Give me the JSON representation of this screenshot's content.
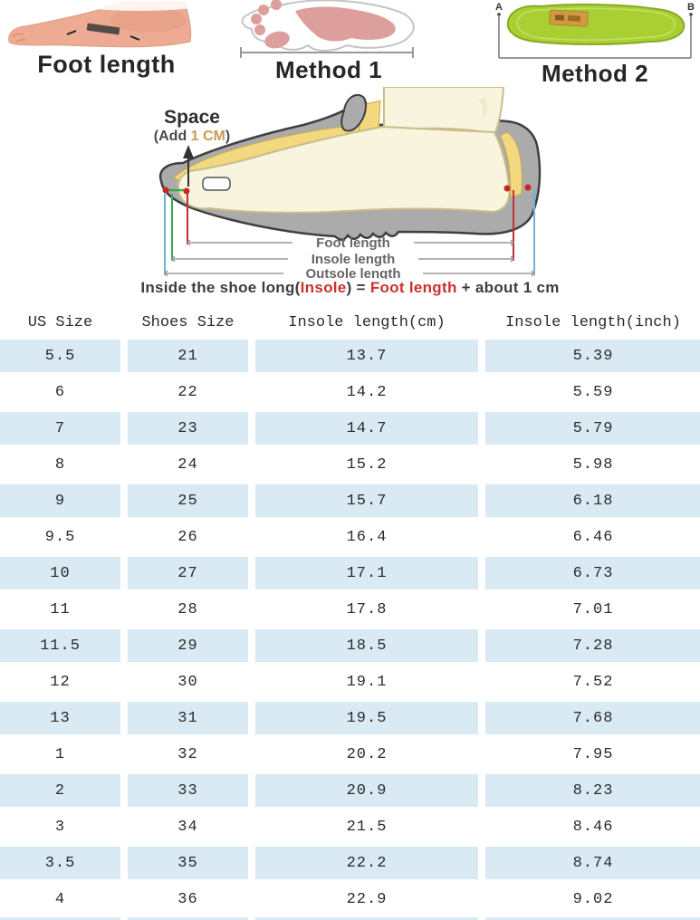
{
  "header_images": {
    "foot_photo_label": "Foot length",
    "method1_label": "Method 1",
    "method2_label": "Method 2",
    "method2_point_a": "A",
    "method2_point_b": "B"
  },
  "diagram": {
    "space_label": "Space",
    "space_note_prefix": "(Add ",
    "space_note_value": "1 CM",
    "space_note_suffix": ")",
    "measures": {
      "foot_length": "Foot length",
      "insole_length": "Insole length",
      "outsole_length": "Outsole length"
    }
  },
  "formula": {
    "part1": "Inside the shoe long(",
    "insole": "Insole",
    "part2": ") = ",
    "foot_length": "Foot length",
    "part3": " + about 1 cm"
  },
  "table": {
    "columns": [
      "US Size",
      "Shoes Size",
      "Insole length(cm)",
      "Insole length(inch)"
    ],
    "rows": [
      [
        "5.5",
        "21",
        "13.7",
        "5.39"
      ],
      [
        "6",
        "22",
        "14.2",
        "5.59"
      ],
      [
        "7",
        "23",
        "14.7",
        "5.79"
      ],
      [
        "8",
        "24",
        "15.2",
        "5.98"
      ],
      [
        "9",
        "25",
        "15.7",
        "6.18"
      ],
      [
        "9.5",
        "26",
        "16.4",
        "6.46"
      ],
      [
        "10",
        "27",
        "17.1",
        "6.73"
      ],
      [
        "11",
        "28",
        "17.8",
        "7.01"
      ],
      [
        "11.5",
        "29",
        "18.5",
        "7.28"
      ],
      [
        "12",
        "30",
        "19.1",
        "7.52"
      ],
      [
        "13",
        "31",
        "19.5",
        "7.68"
      ],
      [
        "1",
        "32",
        "20.2",
        "7.95"
      ],
      [
        "2",
        "33",
        "20.9",
        "8.23"
      ],
      [
        "3",
        "34",
        "21.5",
        "8.46"
      ],
      [
        "3.5",
        "35",
        "22.2",
        "8.74"
      ],
      [
        "4",
        "36",
        "22.9",
        "9.02"
      ]
    ]
  },
  "colors": {
    "row_alt_blue": "#d9eaf4",
    "accent_red": "#cc3030",
    "accent_tan": "#c89a55",
    "insole_green": "#a9cf33",
    "footprint_pink": "#dd9f9b",
    "shoe_gray": "#ababab",
    "foot_cream": "#f8f4dd",
    "insole_yellow": "#f2d87e",
    "line_blue": "#6fb3d2",
    "line_green": "#3aa858"
  }
}
